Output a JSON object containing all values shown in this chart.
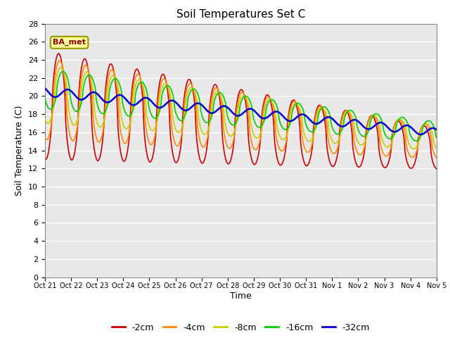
{
  "title": "Soil Temperatures Set C",
  "xlabel": "Time",
  "ylabel": "Soil Temperature (C)",
  "ylim": [
    0,
    28
  ],
  "yticks": [
    0,
    2,
    4,
    6,
    8,
    10,
    12,
    14,
    16,
    18,
    20,
    22,
    24,
    26,
    28
  ],
  "xtick_labels": [
    "Oct 21",
    "Oct 22",
    "Oct 23",
    "Oct 24",
    "Oct 25",
    "Oct 26",
    "Oct 27",
    "Oct 28",
    "Oct 29",
    "Oct 30",
    "Oct 31",
    "Nov 1",
    "Nov 2",
    "Nov 3",
    "Nov 4",
    "Nov 5"
  ],
  "colors": {
    "-2cm": "#cc0000",
    "-4cm": "#ff8800",
    "-8cm": "#cccc00",
    "-16cm": "#00cc00",
    "-32cm": "#0000cc"
  },
  "legend_labels": [
    "-2cm",
    "-4cm",
    "-8cm",
    "-16cm",
    "-32cm"
  ],
  "annotation_text": "BA_met",
  "annotation_bg": "#ffff99",
  "annotation_border": "#999900",
  "plot_bg": "#e8e8e8",
  "fig_bg": "#ffffff",
  "num_days": 15,
  "n_points": 720
}
